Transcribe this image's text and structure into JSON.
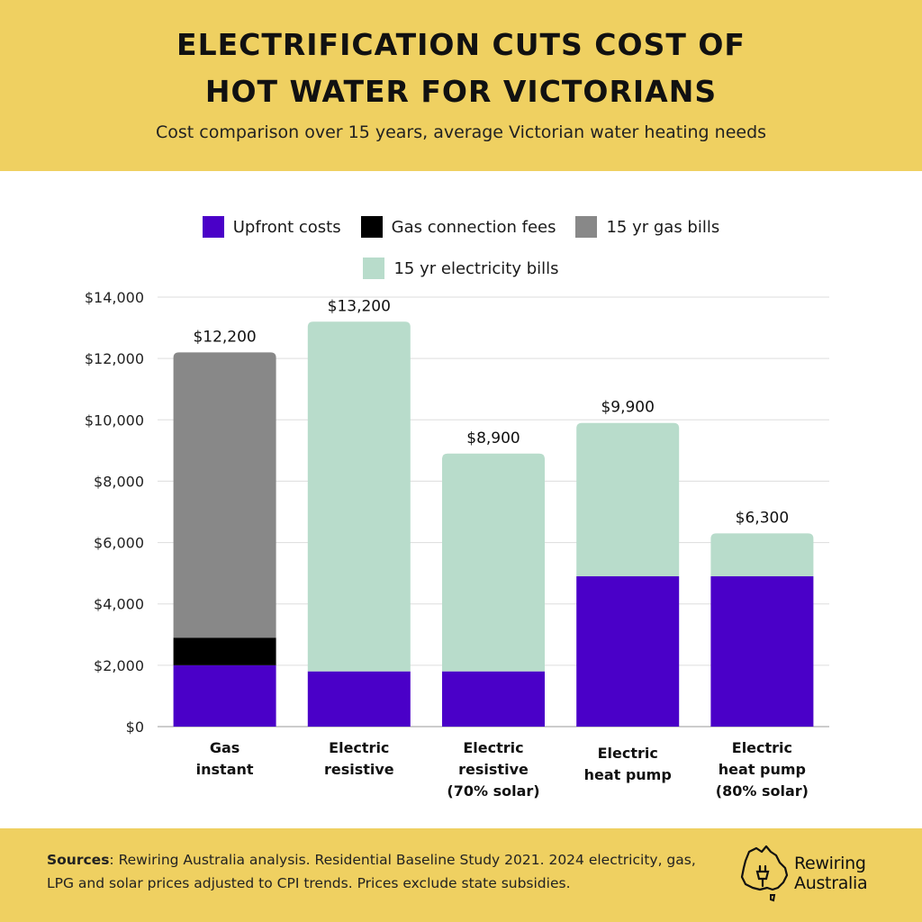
{
  "header": {
    "title_line1": "ELECTRIFICATION CUTS COST OF",
    "title_line2": "HOT WATER FOR VICTORIANS",
    "subtitle": "Cost comparison over 15 years, average Victorian water heating needs"
  },
  "colors": {
    "upfront": "#4a00c8",
    "gas_connection": "#000000",
    "gas_bills": "#888888",
    "electricity_bills": "#b8dccb",
    "header_bg": "#efd061"
  },
  "chart_data": {
    "type": "bar",
    "stacked": true,
    "categories": [
      [
        "Gas",
        "instant"
      ],
      [
        "Electric",
        "resistive"
      ],
      [
        "Electric",
        "resistive",
        "(70% solar)"
      ],
      [
        "Electric",
        "heat pump"
      ],
      [
        "Electric",
        "heat pump",
        "(80% solar)"
      ]
    ],
    "series": [
      {
        "name": "Upfront costs",
        "key": "upfront",
        "values": [
          2000,
          1800,
          1800,
          4900,
          4900
        ]
      },
      {
        "name": "Gas connection fees",
        "key": "gas_connection",
        "values": [
          900,
          0,
          0,
          0,
          0
        ]
      },
      {
        "name": "15 yr gas bills",
        "key": "gas_bills",
        "values": [
          9300,
          0,
          0,
          0,
          0
        ]
      },
      {
        "name": "15 yr electricity bills",
        "key": "electricity_bills",
        "values": [
          0,
          11400,
          7100,
          5000,
          1400
        ]
      }
    ],
    "totals": [
      "$12,200",
      "$13,200",
      "$8,900",
      "$9,900",
      "$6,300"
    ],
    "ylim": [
      0,
      14000
    ],
    "yticks": [
      "$0",
      "$2,000",
      "$4,000",
      "$6,000",
      "$8,000",
      "$10,000",
      "$12,000",
      "$14,000"
    ],
    "xlabel": "",
    "ylabel": "",
    "grid": true,
    "legend": "top"
  },
  "legend": {
    "upfront": "Upfront costs",
    "gas_connection": "Gas connection fees",
    "gas_bills": "15 yr gas bills",
    "electricity_bills": "15 yr electricity bills"
  },
  "footer": {
    "sources_label": "Sources",
    "sources_text": ": Rewiring Australia analysis. Residential Baseline Study 2021. 2024 electricity, gas, LPG and solar prices adjusted to CPI trends. Prices exclude state subsidies.",
    "logo_line1": "Rewiring",
    "logo_line2": "Australia"
  }
}
